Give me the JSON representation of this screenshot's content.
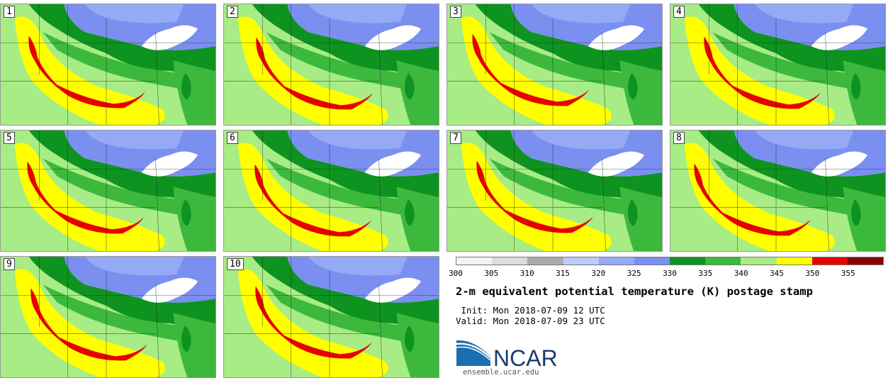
{
  "panels": [
    "1",
    "2",
    "3",
    "4",
    "5",
    "6",
    "7",
    "8",
    "9",
    "10"
  ],
  "colorbar": {
    "ticks": [
      "300",
      "305",
      "310",
      "315",
      "320",
      "325",
      "330",
      "335",
      "340",
      "345",
      "350",
      "355"
    ],
    "colors": [
      "#f2f2f2",
      "#dcdcdc",
      "#ababab",
      "#bdcbf6",
      "#95aaf5",
      "#7b8ff1",
      "#0e9320",
      "#3cb93c",
      "#a7ec84",
      "#ffff00",
      "#e60000",
      "#8b0000"
    ]
  },
  "title": "2-m equivalent potential temperature (K) postage stamp",
  "init": " Init: Mon 2018-07-09 12 UTC",
  "valid": "Valid: Mon 2018-07-09 23 UTC",
  "logo": {
    "text": "NCAR",
    "url": "ensemble.ucar.edu"
  }
}
